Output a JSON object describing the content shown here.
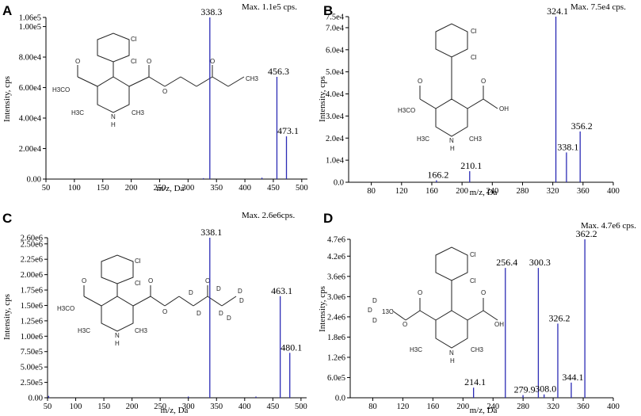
{
  "chart_data": [
    {
      "panel": "A",
      "type": "bar",
      "max_label": "Max. 1.1e5 cps.",
      "xlabel": "m/z, Da",
      "ylabel": "Intensity, cps",
      "xlim": [
        50,
        510
      ],
      "ylim": [
        0,
        106000
      ],
      "xticks": [
        50,
        100,
        150,
        200,
        250,
        300,
        350,
        400,
        450,
        500
      ],
      "xtick_labels": [
        "50",
        "100",
        "150",
        "200",
        "250",
        "300",
        "350",
        "400",
        "450",
        "500"
      ],
      "yticks": [
        0,
        20000,
        40000,
        60000,
        80000,
        100000,
        106000
      ],
      "ytick_labels": [
        "0.00",
        "2.00e4",
        "4.00e4",
        "6.00e4",
        "8.00e4",
        "1.00e5",
        "1.06e5"
      ],
      "peaks": [
        {
          "mz": 338.3,
          "intensity": 106000,
          "label": "338.3"
        },
        {
          "mz": 456.3,
          "intensity": 67000,
          "label": "456.3"
        },
        {
          "mz": 473.1,
          "intensity": 28000,
          "label": "473.1"
        },
        {
          "mz": 327,
          "intensity": 600,
          "label": ""
        },
        {
          "mz": 430,
          "intensity": 900,
          "label": ""
        }
      ],
      "structure_labels": [
        "Cl",
        "Cl",
        "H3CO",
        "O",
        "O",
        "O",
        "O",
        "H3C",
        "N",
        "CH3",
        "H",
        "CH3"
      ]
    },
    {
      "panel": "B",
      "type": "bar",
      "max_label": "Max. 7.5e4 cps.",
      "xlabel": "m/z, Da",
      "ylabel": "Intensity, cps",
      "xlim": [
        50,
        400
      ],
      "ylim": [
        0,
        75000
      ],
      "xticks": [
        80,
        120,
        160,
        200,
        240,
        280,
        320,
        360,
        400
      ],
      "xtick_labels": [
        "80",
        "120",
        "160",
        "200",
        "240",
        "280",
        "320",
        "360",
        "400"
      ],
      "yticks": [
        0,
        10000,
        20000,
        30000,
        40000,
        50000,
        60000,
        70000,
        75000
      ],
      "ytick_labels": [
        "0.0",
        "1.0e4",
        "2.0e4",
        "3.0e4",
        "4.0e4",
        "5.0e4",
        "6.0e4",
        "7.0e4",
        "7.5e4"
      ],
      "peaks": [
        {
          "mz": 324.1,
          "intensity": 75000,
          "label": "324.1"
        },
        {
          "mz": 356.2,
          "intensity": 23000,
          "label": "356.2"
        },
        {
          "mz": 338.1,
          "intensity": 13500,
          "label": "338.1"
        },
        {
          "mz": 210.1,
          "intensity": 5000,
          "label": "210.1"
        },
        {
          "mz": 166.2,
          "intensity": 900,
          "label": "166.2"
        }
      ],
      "structure_labels": [
        "Cl",
        "Cl",
        "H3CO",
        "O",
        "O",
        "OH",
        "H3C",
        "N",
        "CH3",
        "H"
      ]
    },
    {
      "panel": "C",
      "type": "bar",
      "max_label": "Max. 2.6e6cps.",
      "xlabel": "m/z, Da",
      "ylabel": "Intensity, cps",
      "xlim": [
        50,
        510
      ],
      "ylim": [
        0,
        2600000
      ],
      "xticks": [
        50,
        100,
        150,
        200,
        250,
        300,
        350,
        400,
        450,
        500
      ],
      "xtick_labels": [
        "50",
        "100",
        "150",
        "200",
        "250",
        "300",
        "350",
        "400",
        "450",
        "500"
      ],
      "yticks": [
        0,
        250000,
        500000,
        750000,
        1000000,
        1250000,
        1500000,
        1750000,
        2000000,
        2250000,
        2500000,
        2600000
      ],
      "ytick_labels": [
        "0.00",
        "2.50e5",
        "5.00e5",
        "7.50e5",
        "1.00e6",
        "1.25e6",
        "1.50e6",
        "1.75e6",
        "2.00e6",
        "2.25e6",
        "2.50e6",
        "2.60e6"
      ],
      "peaks": [
        {
          "mz": 338.1,
          "intensity": 2600000,
          "label": "338.1"
        },
        {
          "mz": 463.1,
          "intensity": 1650000,
          "label": "463.1"
        },
        {
          "mz": 480.1,
          "intensity": 730000,
          "label": "480.1"
        },
        {
          "mz": 52,
          "intensity": 30000,
          "label": ""
        },
        {
          "mz": 300,
          "intensity": 20000,
          "label": ""
        },
        {
          "mz": 420,
          "intensity": 20000,
          "label": ""
        }
      ],
      "structure_labels": [
        "Cl",
        "Cl",
        "H3CO",
        "O",
        "O",
        "O",
        "O",
        "D",
        "D",
        "D",
        "D",
        "D",
        "D",
        "D",
        "H3C",
        "N",
        "CH3",
        "H"
      ]
    },
    {
      "panel": "D",
      "type": "bar",
      "max_label": "Max. 4.7e6 cps.",
      "xlabel": "m/z, Da",
      "ylabel": "Intensity, cps",
      "xlim": [
        50,
        400
      ],
      "ylim": [
        0,
        4700000
      ],
      "xticks": [
        80,
        120,
        160,
        200,
        240,
        280,
        320,
        360,
        400
      ],
      "xtick_labels": [
        "80",
        "120",
        "160",
        "200",
        "240",
        "280",
        "320",
        "360",
        "400"
      ],
      "yticks": [
        0,
        600000,
        1200000,
        1800000,
        2400000,
        3000000,
        3600000,
        4200000,
        4700000
      ],
      "ytick_labels": [
        "0.0",
        "6.0e5",
        "1.2e6",
        "1.8e6",
        "2.4e6",
        "3.0e6",
        "3.6e6",
        "4.2e6",
        "4.7e6"
      ],
      "peaks": [
        {
          "mz": 362.2,
          "intensity": 4700000,
          "label": "362.2"
        },
        {
          "mz": 256.4,
          "intensity": 3850000,
          "label": "256.4"
        },
        {
          "mz": 300.3,
          "intensity": 3850000,
          "label": "300.3"
        },
        {
          "mz": 326.2,
          "intensity": 2200000,
          "label": "326.2"
        },
        {
          "mz": 344.1,
          "intensity": 450000,
          "label": "344.1"
        },
        {
          "mz": 214.1,
          "intensity": 300000,
          "label": "214.1"
        },
        {
          "mz": 308.0,
          "intensity": 100000,
          "label": "308.0"
        },
        {
          "mz": 279.9,
          "intensity": 80000,
          "label": "279.9"
        }
      ],
      "structure_labels": [
        "Cl",
        "Cl",
        "D",
        "D",
        "D",
        "13C",
        "O",
        "O",
        "O",
        "OH",
        "H3C",
        "N",
        "CH3",
        "H"
      ]
    }
  ],
  "colors": {
    "peak": "#2b2bb5",
    "axis": "#000000"
  }
}
